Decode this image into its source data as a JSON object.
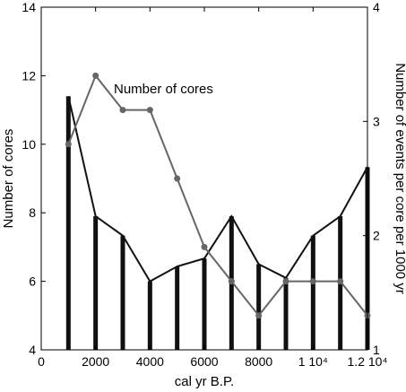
{
  "chart_data": {
    "type": "bar+line",
    "xlabel": "cal yr B.P.",
    "ylabel_left": "Number of cores",
    "ylabel_right": "Number of events per core per 1000 yr",
    "annotation": "Number of cores",
    "xlim": [
      0,
      12000
    ],
    "ylim_left": [
      4,
      14
    ],
    "ylim_right": [
      1,
      4
    ],
    "x_ticks": [
      {
        "value": 0,
        "label": "0"
      },
      {
        "value": 2000,
        "label": "2000"
      },
      {
        "value": 4000,
        "label": "4000"
      },
      {
        "value": 6000,
        "label": "6000"
      },
      {
        "value": 8000,
        "label": "8000"
      },
      {
        "value": 10000,
        "label": "1 10⁴"
      },
      {
        "value": 12000,
        "label": "1.2 10⁴"
      }
    ],
    "y_left_ticks": [
      4,
      6,
      8,
      10,
      12,
      14
    ],
    "y_right_ticks": [
      1,
      2,
      3,
      4
    ],
    "series": [
      {
        "name": "Number of events per core per 1000 yr",
        "axis": "right",
        "style": "bars-with-line",
        "color": "#111111",
        "x": [
          1000,
          2000,
          3000,
          4000,
          5000,
          6000,
          7000,
          8000,
          9000,
          10000,
          11000,
          12000
        ],
        "values": [
          3.22,
          2.17,
          2.0,
          1.6,
          1.73,
          1.8,
          2.17,
          1.75,
          1.63,
          2.0,
          2.17,
          2.6
        ]
      },
      {
        "name": "Number of cores",
        "axis": "left",
        "style": "line-markers",
        "color": "#666666",
        "x": [
          1000,
          2000,
          3000,
          4000,
          5000,
          6000,
          7000,
          8000,
          9000,
          10000,
          11000,
          12000
        ],
        "values": [
          10,
          12,
          11,
          11,
          9,
          7,
          6,
          5,
          6,
          6,
          6,
          5
        ]
      }
    ]
  }
}
